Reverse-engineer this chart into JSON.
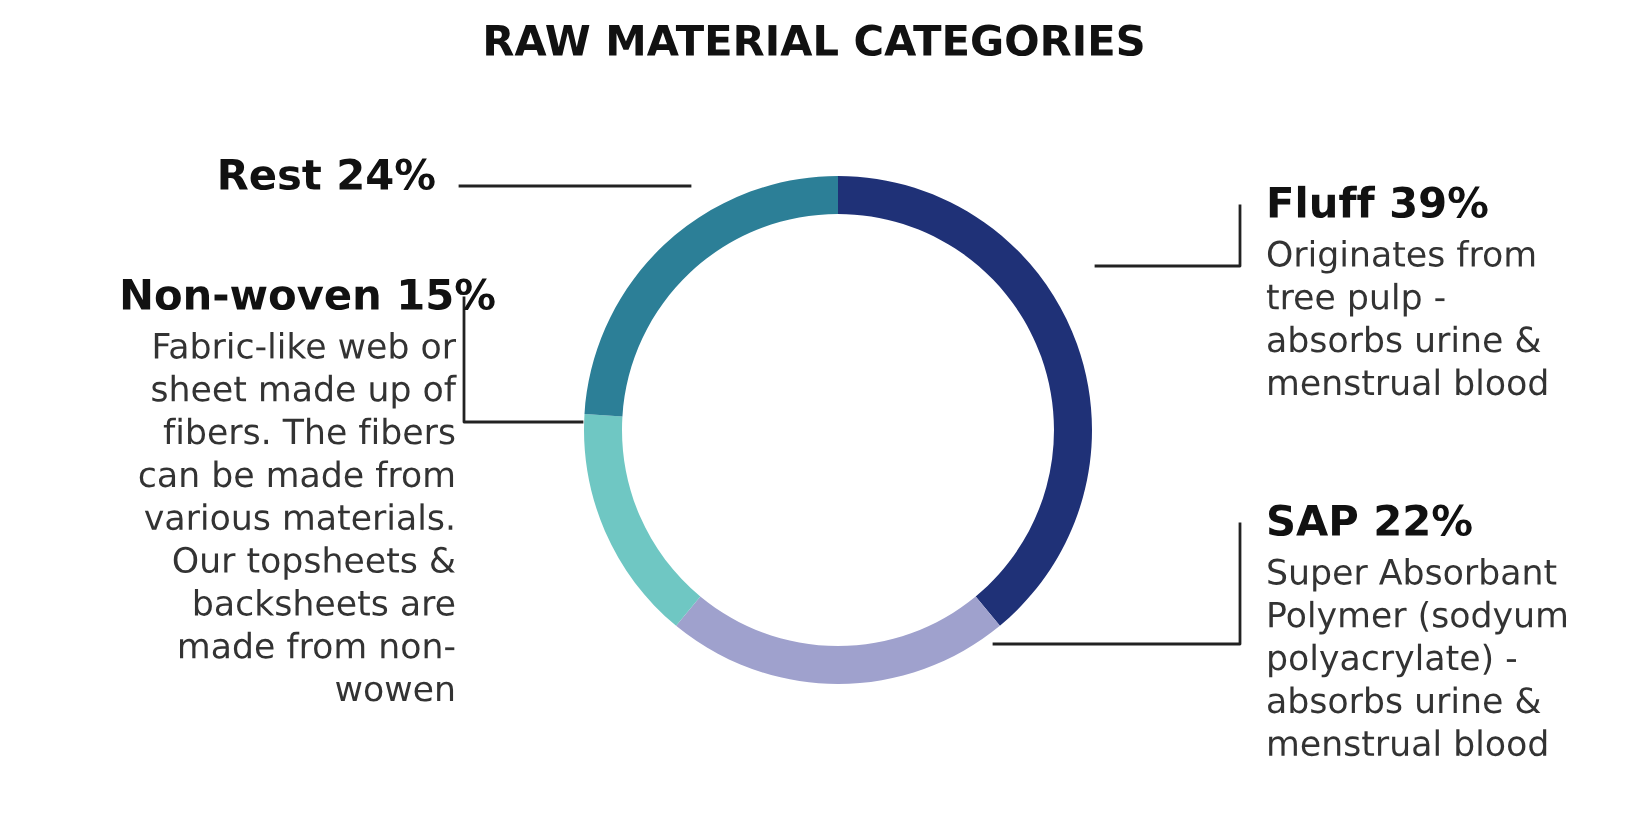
{
  "chart_data": {
    "type": "donut",
    "title": "RAW MATERIAL CATEGORIES",
    "categories": [
      "Fluff",
      "SAP",
      "Non-woven",
      "Rest"
    ],
    "values": [
      39,
      22,
      15,
      24
    ],
    "value_labels": [
      "39%",
      "22%",
      "15%",
      "24%"
    ],
    "colors": [
      "#1f3177",
      "#9fa1cd",
      "#6fc7c3",
      "#2c7f97"
    ],
    "legend": false,
    "annotations": [
      "Originates from\ntree pulp -\nabsorbs urine &\nmenstrual blood",
      "Super Absorbant\nPolymer (sodyum\npolyacrylate) -\nabsorbs urine &\nmenstrual blood",
      "Fabric-like web or\nsheet made up of\nfibers. The fibers\ncan be made from\nvarious materials.\nOur topsheets &\nbacksheets are\nmade from non-\nwowen"
    ]
  }
}
